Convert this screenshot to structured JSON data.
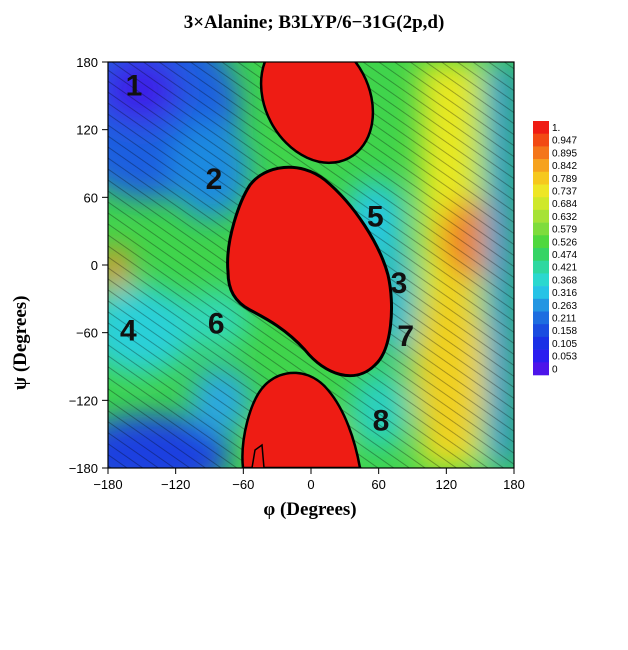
{
  "chart_data": {
    "type": "heatmap",
    "title": "3×Alanine; B3LYP/6−31G(2p,d)",
    "xlabel": "φ (Degrees)",
    "ylabel": "ψ (Degrees)",
    "xlim": [
      -180,
      180
    ],
    "ylim": [
      -180,
      180
    ],
    "x_ticks": [
      "−180",
      "−120",
      "−60",
      "0",
      "60",
      "120",
      "180"
    ],
    "y_ticks": [
      "180",
      "120",
      "60",
      "0",
      "−60",
      "−120",
      "−180"
    ],
    "colorbar": {
      "labels": [
        "1.",
        "0.947",
        "0.895",
        "0.842",
        "0.789",
        "0.737",
        "0.684",
        "0.632",
        "0.579",
        "0.526",
        "0.474",
        "0.421",
        "0.368",
        "0.316",
        "0.263",
        "0.211",
        "0.158",
        "0.105",
        "0.053",
        "0"
      ],
      "colors": [
        "#ef1c14",
        "#f24a14",
        "#f4761a",
        "#f6a21e",
        "#f6c81e",
        "#eee626",
        "#cfe82a",
        "#a6e236",
        "#7edc3c",
        "#4fd83e",
        "#35d464",
        "#2ed8a0",
        "#2bd8cf",
        "#27c3e6",
        "#2396e2",
        "#1d6de0",
        "#1a4ce0",
        "#1a30e6",
        "#2a1cf0",
        "#4d14ea"
      ]
    },
    "minima": [
      {
        "label": "1",
        "phi": -157,
        "psi": 160
      },
      {
        "label": "2",
        "phi": -86,
        "psi": 77
      },
      {
        "label": "3",
        "phi": 78,
        "psi": -15
      },
      {
        "label": "4",
        "phi": -162,
        "psi": -57
      },
      {
        "label": "5",
        "phi": 57,
        "psi": 44
      },
      {
        "label": "6",
        "phi": -84,
        "psi": -51
      },
      {
        "label": "7",
        "phi": 84,
        "psi": -62
      },
      {
        "label": "8",
        "phi": 62,
        "psi": -137
      }
    ]
  }
}
